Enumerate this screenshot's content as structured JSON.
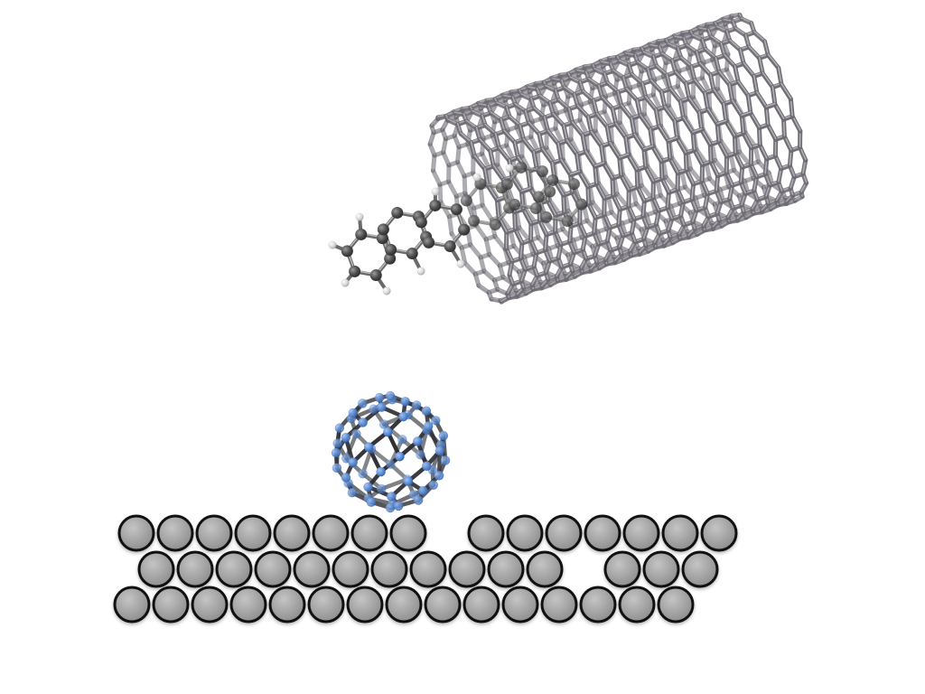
{
  "scene": {
    "description_elements": [
      "carbon-nanotube",
      "aromatic-molecule",
      "fullerene",
      "substrate"
    ],
    "colors": {
      "background": "#ffffff",
      "nanotube_bond": "#6e6b73",
      "molecule_carbon": "#4a4a4a",
      "molecule_hydrogen": "#d9d9d9",
      "fullerene_atom": "#5b8dd9",
      "fullerene_bond": "#2d2f35",
      "substrate_atom": "#a9a9a9"
    },
    "substrate": {
      "rows": [
        {
          "count": 15,
          "vacancies": [
            8
          ]
        },
        {
          "count": 14,
          "vacancies": [
            11
          ]
        },
        {
          "count": 15,
          "vacancies": []
        }
      ]
    }
  }
}
